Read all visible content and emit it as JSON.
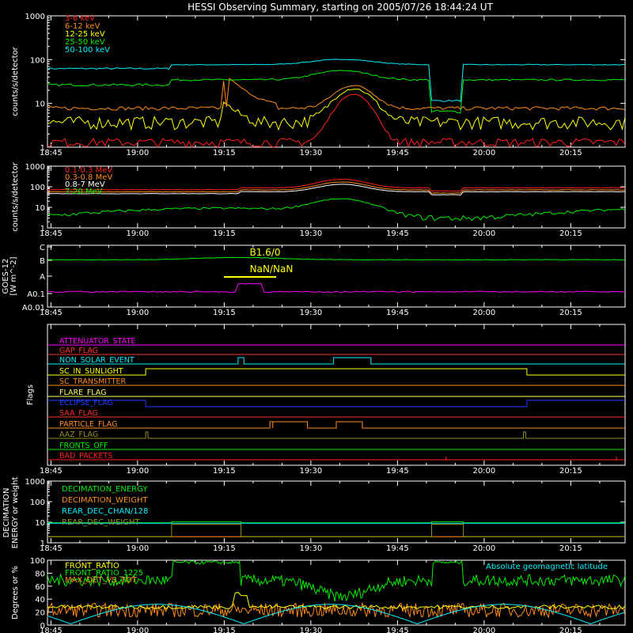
{
  "title": "HESSI Observing Summary, starting on 2005/07/26 18:44:24 UT",
  "time_ticks": [
    "18:45",
    "19:00",
    "19:15",
    "19:30",
    "19:45",
    "20:00",
    "20:15"
  ],
  "panels": [
    {
      "id": "lo-energy",
      "ylabel": "counts/s/detector",
      "yticks": [
        "1000",
        "100",
        "10",
        "1"
      ]
    },
    {
      "id": "hi-energy",
      "ylabel": "counts/s/detector",
      "yticks": [
        "1000",
        "100",
        "10",
        "1"
      ]
    },
    {
      "id": "goes",
      "ylabel": "GOES-12",
      "ylabel2": "[W m^-2]",
      "yticks": [
        "C",
        "B",
        "A",
        "A0.1",
        "A0.01"
      ]
    },
    {
      "id": "flags",
      "ylabel": "Flags"
    },
    {
      "id": "decimation",
      "ylabel": "DECIMATION",
      "ylabel2": "ENERGY or weight",
      "yticks": [
        "1000",
        "100",
        "10",
        "1"
      ]
    },
    {
      "id": "ratios",
      "ylabel": "Degrees or %",
      "yticks": [
        "100",
        "80",
        "60",
        "40",
        "20",
        "0"
      ]
    }
  ],
  "goes_labels": {
    "class_label": "B1.6/0",
    "ratio_label": "NaN/NaN"
  },
  "chart_data": [
    {
      "type": "line",
      "title": "HESSI Observing Summary, starting on 2005/07/26 18:44:24 UT",
      "ylabel": "counts/s/detector",
      "yscale": "log",
      "ylim": [
        1,
        1000
      ],
      "x_units": "minutes from 18:44:24 UT",
      "xlim": [
        0,
        100
      ],
      "series": [
        {
          "name": "3-6 keV",
          "color": "#ff2020"
        },
        {
          "name": "6-12 keV",
          "color": "#ff8c1a"
        },
        {
          "name": "12-25 keV",
          "color": "#ffff00"
        },
        {
          "name": "25-50 keV",
          "color": "#00ee00"
        },
        {
          "name": "50-100 keV",
          "color": "#00eeff"
        }
      ]
    },
    {
      "type": "line",
      "ylabel": "counts/s/detector",
      "yscale": "log",
      "ylim": [
        1,
        1000
      ],
      "series": [
        {
          "name": "0.1-0.3 MeV",
          "color": "#ff2020"
        },
        {
          "name": "0.3-0.8 MeV",
          "color": "#ff8c1a"
        },
        {
          "name": "0.8-7 MeV",
          "color": "#ffffff"
        },
        {
          "name": "7-20 MeV",
          "color": "#00ee00"
        }
      ]
    },
    {
      "type": "line",
      "ylabel": "GOES-12",
      "yticks": [
        "C",
        "B",
        "A",
        "A0.1",
        "A0.01"
      ]
    },
    {
      "type": "line",
      "ylabel": "Flags",
      "series": [
        {
          "name": "ATTENUATOR_STATE",
          "color": "#ff00ff"
        },
        {
          "name": "GAP_FLAG",
          "color": "#ff3030"
        },
        {
          "name": "NON_SOLAR_EVENT",
          "color": "#00eeff"
        },
        {
          "name": "SC_IN_SUNLIGHT",
          "color": "#ffff00"
        },
        {
          "name": "SC_TRANSMITTER",
          "color": "#ff8c1a"
        },
        {
          "name": "FLARE_FLAG",
          "color": "#ffff60"
        },
        {
          "name": "ECLIPSE_FLAG",
          "color": "#2040ff"
        },
        {
          "name": "SAA_FLAG",
          "color": "#ff3030"
        },
        {
          "name": "PARTICLE_FLAG",
          "color": "#ff8c1a"
        },
        {
          "name": "AAZ_FLAG",
          "color": "#909020"
        },
        {
          "name": "FRONTS_OFF",
          "color": "#00ee00"
        },
        {
          "name": "BAD_PACKETS",
          "color": "#ff2020"
        }
      ]
    },
    {
      "type": "line",
      "ylabel": "DECIMATION ENERGY or weight",
      "yscale": "log",
      "ylim": [
        1,
        1000
      ],
      "series": [
        {
          "name": "DECIMATION_ENERGY",
          "color": "#00ee00"
        },
        {
          "name": "DECIMATION_WEIGHT",
          "color": "#ff8c1a"
        },
        {
          "name": "REAR_DEC_CHAN/128",
          "color": "#00eeff"
        },
        {
          "name": "REAR_DEC_WEIGHT",
          "color": "#909020"
        }
      ]
    },
    {
      "type": "line",
      "ylabel": "Degrees or %",
      "ylim": [
        0,
        100
      ],
      "series": [
        {
          "name": "FRONT_RATIO",
          "color": "#ffff00"
        },
        {
          "name": "FRONT_RATIO_1225",
          "color": "#00ee00"
        },
        {
          "name": "MAX_DET_VS_TOT",
          "color": "#ff8c1a"
        },
        {
          "name": "Absolute geomagnetic latitude",
          "color": "#00eeff"
        }
      ]
    }
  ]
}
